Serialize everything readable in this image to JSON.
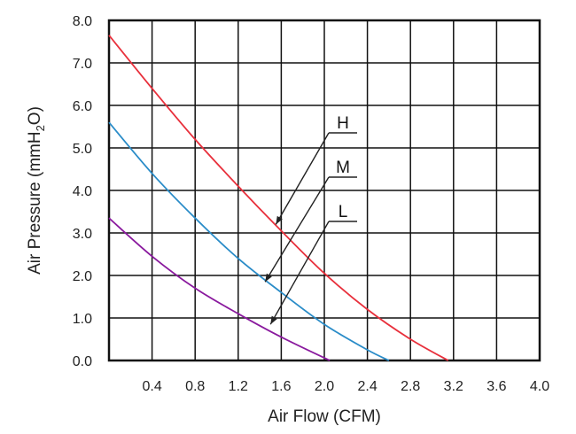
{
  "chart_data": {
    "type": "line",
    "xlabel": "Air Flow (CFM)",
    "ylabel_prefix": "Air Pressure (mmH",
    "ylabel_sub": "2",
    "ylabel_suffix": "O)",
    "xlim": [
      0,
      4.0
    ],
    "ylim": [
      0,
      8.0
    ],
    "x_ticks": [
      "0.4",
      "0.8",
      "1.2",
      "1.6",
      "2.0",
      "2.4",
      "2.8",
      "3.2",
      "3.6",
      "4.0"
    ],
    "x_tick_values": [
      0.4,
      0.8,
      1.2,
      1.6,
      2.0,
      2.4,
      2.8,
      3.2,
      3.6,
      4.0
    ],
    "y_ticks": [
      "0.0",
      "1.0",
      "2.0",
      "3.0",
      "4.0",
      "5.0",
      "6.0",
      "7.0",
      "8.0"
    ],
    "y_tick_values": [
      0,
      1,
      2,
      3,
      4,
      5,
      6,
      7,
      8
    ],
    "grid": true,
    "series": [
      {
        "name": "H",
        "color": "#e8303c",
        "x": [
          0,
          0.4,
          0.8,
          1.2,
          1.6,
          2.0,
          2.4,
          2.8,
          3.15
        ],
        "y": [
          7.65,
          6.4,
          5.2,
          4.1,
          3.05,
          2.05,
          1.2,
          0.5,
          0
        ]
      },
      {
        "name": "M",
        "color": "#2a8cc8",
        "x": [
          0,
          0.4,
          0.8,
          1.2,
          1.6,
          2.0,
          2.4,
          2.6
        ],
        "y": [
          5.6,
          4.4,
          3.35,
          2.4,
          1.6,
          0.85,
          0.25,
          0
        ]
      },
      {
        "name": "L",
        "color": "#8a1a9e",
        "x": [
          0,
          0.4,
          0.8,
          1.2,
          1.6,
          2.05
        ],
        "y": [
          3.35,
          2.45,
          1.7,
          1.1,
          0.55,
          0
        ]
      }
    ],
    "annotations": [
      {
        "label": "H",
        "target_x": 1.55,
        "target_y": 3.2
      },
      {
        "label": "M",
        "target_x": 1.45,
        "target_y": 1.85
      },
      {
        "label": "L",
        "target_x": 1.5,
        "target_y": 0.85
      }
    ]
  }
}
